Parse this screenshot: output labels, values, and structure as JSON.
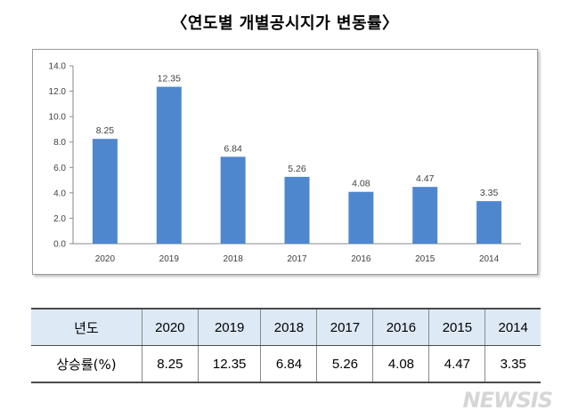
{
  "title": "〈연도별  개별공시지가 변동률〉",
  "chart_data": {
    "type": "bar",
    "title": "",
    "xlabel": "",
    "ylabel": "",
    "categories": [
      "2020",
      "2019",
      "2018",
      "2017",
      "2016",
      "2015",
      "2014"
    ],
    "values": [
      8.25,
      12.35,
      6.84,
      5.26,
      4.08,
      4.47,
      3.35
    ],
    "value_labels": [
      "8.25",
      "12.35",
      "6.84",
      "5.26",
      "4.08",
      "4.47",
      "3.35"
    ],
    "yticks": [
      "0.0",
      "2.0",
      "4.0",
      "6.0",
      "8.0",
      "10.0",
      "12.0",
      "14.0"
    ],
    "ylim": [
      0,
      14
    ],
    "grid": false,
    "legend": "none",
    "bar_color": "#4f87cf"
  },
  "table": {
    "header_label": "년도",
    "row_label": "상승률(%)",
    "years": [
      "2020",
      "2019",
      "2018",
      "2017",
      "2016",
      "2015",
      "2014"
    ],
    "rates": [
      "8.25",
      "12.35",
      "6.84",
      "5.26",
      "4.08",
      "4.47",
      "3.35"
    ],
    "header_bg": "#dde9f5"
  },
  "watermark": "NEWSIS"
}
